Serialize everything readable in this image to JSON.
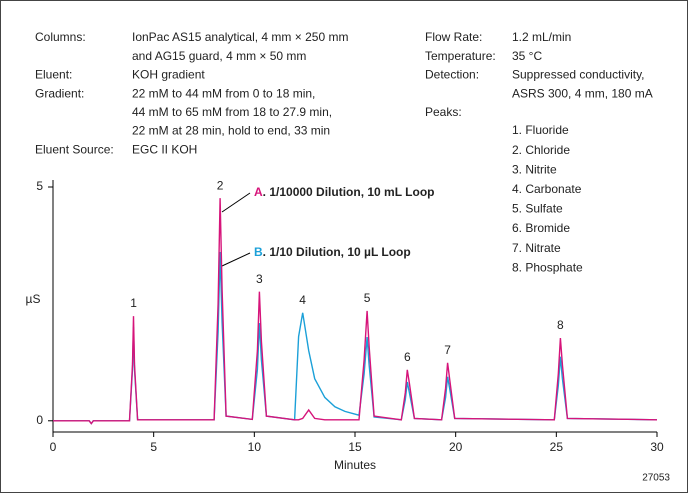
{
  "chart_data": {
    "type": "line",
    "conditions_left": [
      {
        "label": "Columns:",
        "value": [
          "IonPac AS15 analytical, 4 mm × 250 mm",
          "and AG15 guard, 4 mm × 50 mm"
        ]
      },
      {
        "label": "Eluent:",
        "value": [
          "KOH gradient"
        ]
      },
      {
        "label": "Gradient:",
        "value": [
          "22 mM to 44 mM from 0 to 18 min,",
          "44 mM to 65 mM from 18 to 27.9 min,",
          "22 mM at 28 min, hold to end, 33 min"
        ]
      },
      {
        "label": "Eluent Source:",
        "value": [
          "EGC II KOH"
        ]
      }
    ],
    "conditions_right": [
      {
        "label": "Flow Rate:",
        "value": [
          "1.2 mL/min"
        ]
      },
      {
        "label": "Temperature:",
        "value": [
          "35 °C"
        ]
      },
      {
        "label": "Detection:",
        "value": [
          "Suppressed conductivity,",
          "ASRS 300, 4 mm, 180 mA"
        ]
      },
      {
        "label": "Peaks:",
        "value": []
      }
    ],
    "peaks": [
      "1. Fluoride",
      "2. Chloride",
      "3. Nitrite",
      "4. Carbonate",
      "5. Sulfate",
      "6. Bromide",
      "7. Nitrate",
      "8. Phosphate"
    ],
    "peak_labels": [
      {
        "text": "1",
        "x": 4.0
      },
      {
        "text": "2",
        "x": 8.3
      },
      {
        "text": "3",
        "x": 10.25
      },
      {
        "text": "4",
        "x": 12.4
      },
      {
        "text": "5",
        "x": 15.6
      },
      {
        "text": "6",
        "x": 17.6
      },
      {
        "text": "7",
        "x": 19.6
      },
      {
        "text": "8",
        "x": 25.2
      }
    ],
    "x": [
      0,
      1.8,
      1.9,
      2.0,
      3.8,
      3.95,
      4.0,
      4.05,
      4.2,
      8.0,
      8.2,
      8.3,
      8.4,
      8.6,
      9.9,
      10.15,
      10.25,
      10.35,
      10.6,
      12.0,
      12.2,
      12.4,
      12.7,
      13.0,
      13.5,
      14.0,
      14.5,
      15.2,
      15.45,
      15.6,
      15.7,
      15.95,
      17.3,
      17.5,
      17.6,
      17.7,
      17.95,
      19.3,
      19.5,
      19.6,
      19.7,
      19.95,
      24.9,
      25.1,
      25.2,
      25.3,
      25.55,
      30
    ],
    "series": [
      {
        "name": "B. 1/10 Dilution, 10 µL Loop",
        "color": "#1ba0d8",
        "values": [
          0,
          0,
          -0.06,
          0,
          0,
          1.1,
          2.0,
          1.1,
          0.02,
          0.02,
          1.9,
          3.61,
          2.1,
          0.1,
          0.03,
          1.1,
          2.09,
          1.3,
          0.1,
          0.02,
          1.8,
          2.31,
          1.5,
          0.9,
          0.5,
          0.3,
          0.2,
          0.12,
          1.0,
          1.79,
          1.2,
          0.08,
          0.02,
          0.45,
          0.83,
          0.6,
          0.05,
          0.02,
          0.5,
          0.94,
          0.7,
          0.05,
          0.02,
          0.75,
          1.37,
          0.9,
          0.05,
          0.02
        ]
      },
      {
        "name": "A. 1/10000 Dilution, 10 mL Loop",
        "color": "#d6147a",
        "values": [
          0,
          0,
          -0.06,
          0,
          0,
          1.2,
          2.24,
          1.2,
          0.02,
          0.02,
          2.5,
          4.76,
          2.8,
          0.1,
          0.03,
          1.5,
          2.76,
          1.7,
          0.1,
          0.02,
          0.02,
          0.05,
          0.23,
          0.05,
          0.02,
          0.02,
          0.02,
          0.02,
          1.3,
          2.35,
          1.6,
          0.1,
          0.02,
          0.6,
          1.09,
          0.8,
          0.05,
          0.02,
          0.7,
          1.24,
          0.9,
          0.05,
          0.02,
          1.0,
          1.77,
          1.2,
          0.05,
          0.02
        ]
      }
    ],
    "xlim": [
      0,
      30
    ],
    "xticks": [
      0,
      5,
      10,
      15,
      20,
      25,
      30
    ],
    "xlabel": "Minutes",
    "ylim": [
      -0.24,
      5.15
    ],
    "yticks": [
      0,
      5
    ],
    "ylabel": "µS",
    "figure_number": "27053"
  }
}
